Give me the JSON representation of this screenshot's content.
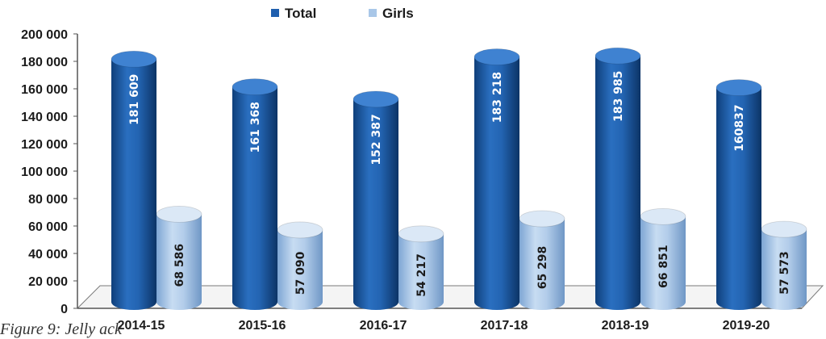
{
  "chart_data": {
    "type": "bar",
    "categories": [
      "2014-15",
      "2015-16",
      "2016-17",
      "2017-18",
      "2018-19",
      "2019-20"
    ],
    "series": [
      {
        "name": "Total",
        "values": [
          181609,
          161368,
          152387,
          183218,
          183985,
          160837
        ],
        "labels": [
          "181 609",
          "161 368",
          "152 387",
          "183 218",
          "183 985",
          "160837"
        ],
        "color": "#1f5fae"
      },
      {
        "name": "Girls",
        "values": [
          68586,
          57090,
          54217,
          65298,
          66851,
          57573
        ],
        "labels": [
          "68 586",
          "57 090",
          "54 217",
          "65 298",
          "66 851",
          "57 573"
        ],
        "color": "#a9c7e8"
      }
    ],
    "yticks": [
      "0",
      "20 000",
      "40 000",
      "60 000",
      "80 000",
      "100 000",
      "120 000",
      "140 000",
      "160 000",
      "180 000",
      "200 000"
    ],
    "ylim": [
      0,
      200000
    ],
    "legend_position": "top",
    "grid": false,
    "style": "3d-cylinder"
  },
  "caption": "Figure 9: Jelly ack"
}
